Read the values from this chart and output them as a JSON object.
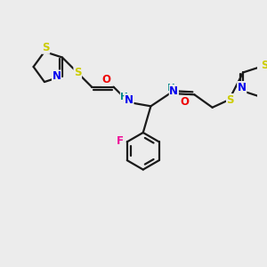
{
  "background_color": "#ececec",
  "bond_color": "#1a1a1a",
  "atom_colors": {
    "S": "#cccc00",
    "N": "#0000ee",
    "O": "#ee0000",
    "F": "#ee1199",
    "H": "#008888",
    "C": "#1a1a1a"
  },
  "font_size": 8.5,
  "linewidth": 1.6,
  "figsize": [
    3.0,
    3.0
  ],
  "dpi": 100
}
